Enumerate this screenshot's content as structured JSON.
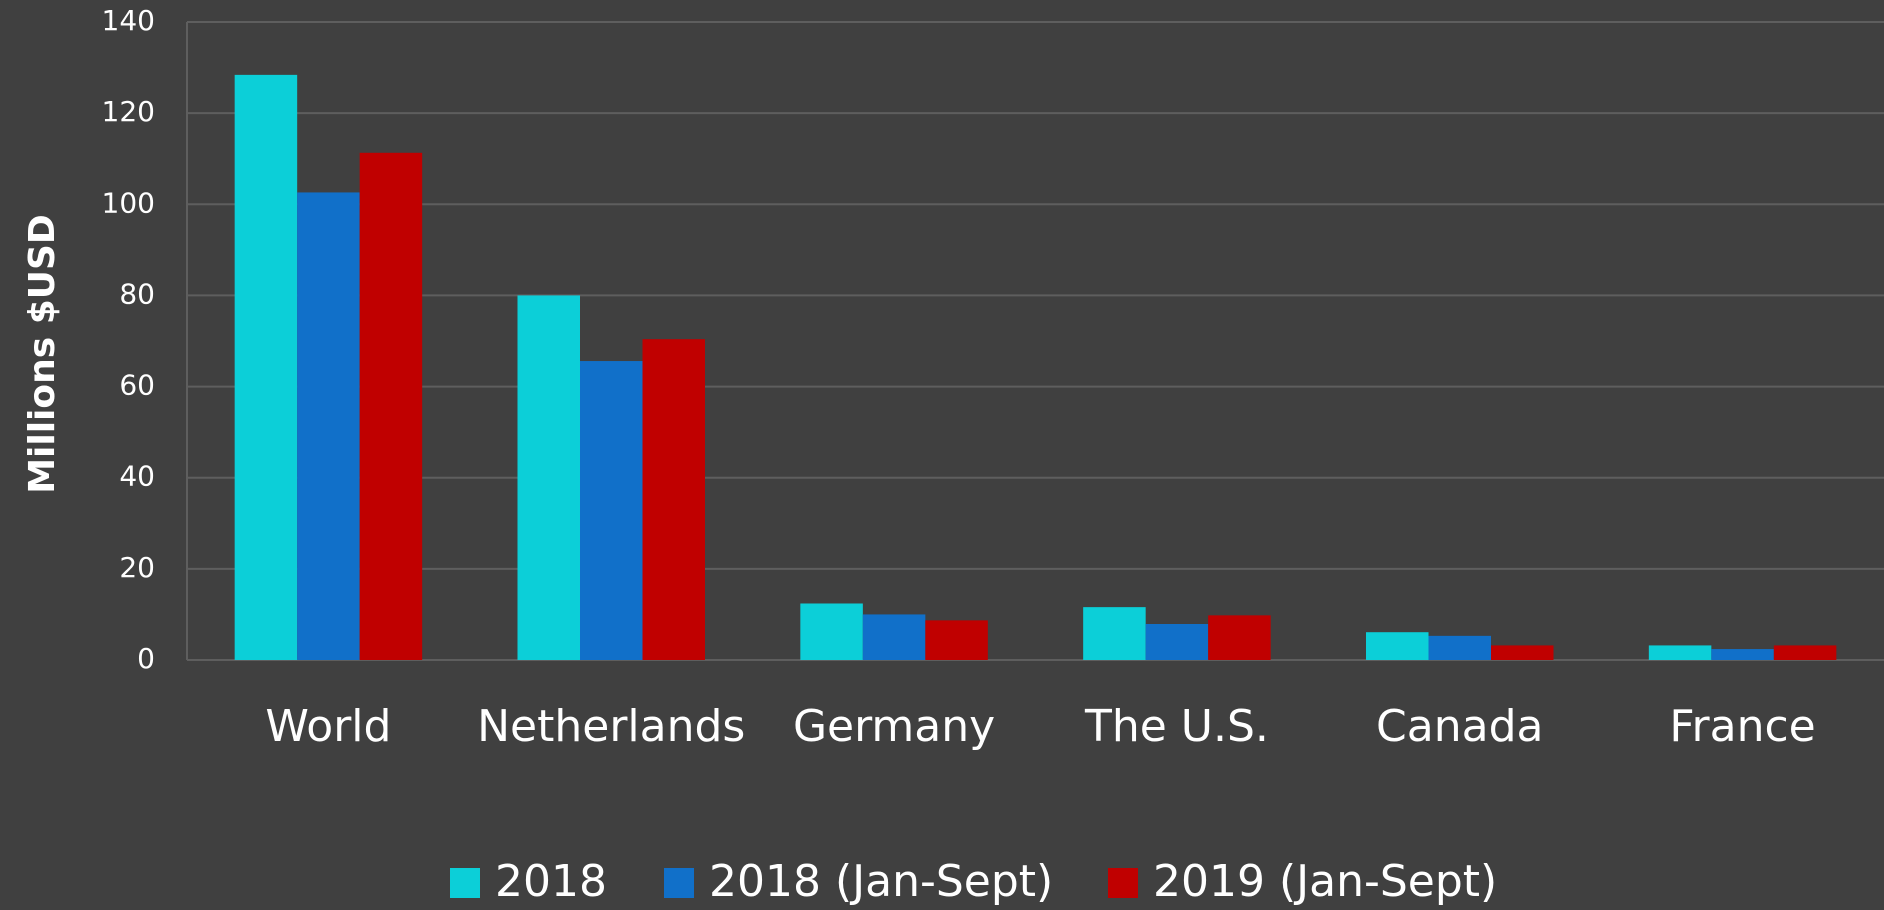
{
  "chart_data": {
    "type": "bar",
    "y_label": "Millions $USD",
    "categories": [
      "World",
      "Netherlands",
      "Germany",
      "The U.S.",
      "Canada",
      "France"
    ],
    "series": [
      {
        "name": "2018",
        "color": "#0ccfd8",
        "values": [
          128.4,
          80,
          12.4,
          11.6,
          6.1,
          3.2
        ]
      },
      {
        "name": "2018 (Jan-Sept)",
        "color": "#1170c9",
        "values": [
          102.6,
          65.6,
          10,
          7.9,
          5.3,
          2.4
        ]
      },
      {
        "name": "2019 (Jan-Sept)",
        "color": "#c00000",
        "values": [
          111.3,
          70.4,
          8.7,
          9.8,
          3.2,
          3.2
        ]
      }
    ],
    "ylim": [
      0,
      140
    ],
    "yticks": [
      0,
      20,
      40,
      60,
      80,
      100,
      120,
      140
    ],
    "grid": true,
    "legend": "bottom"
  }
}
